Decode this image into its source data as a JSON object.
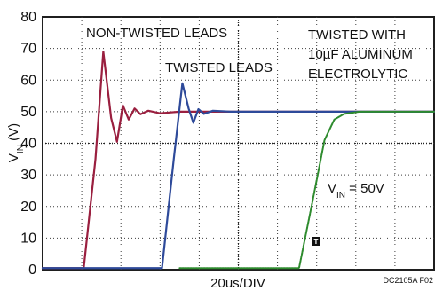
{
  "chart_data": {
    "type": "line",
    "title": "",
    "xlabel": "20us/DIV",
    "ylabel_main": "V",
    "ylabel_sub": "IN",
    "ylabel_unit": " (V)",
    "ylim": [
      0,
      80
    ],
    "xlim": [
      0,
      10
    ],
    "y_ticks": [
      "0",
      "10",
      "20",
      "30",
      "40",
      "50",
      "60",
      "70",
      "80"
    ],
    "grid": "dotted",
    "series": [
      {
        "name": "NON-TWISTED LEADS",
        "color": "#9a1f3f",
        "points": [
          [
            0,
            0.5
          ],
          [
            1.05,
            0.5
          ],
          [
            1.35,
            35
          ],
          [
            1.55,
            69
          ],
          [
            1.75,
            48
          ],
          [
            1.9,
            40.5
          ],
          [
            2.05,
            52
          ],
          [
            2.2,
            47.5
          ],
          [
            2.35,
            51
          ],
          [
            2.5,
            49.2
          ],
          [
            2.7,
            50.3
          ],
          [
            3.0,
            49.5
          ],
          [
            3.5,
            50
          ],
          [
            10,
            50
          ]
        ]
      },
      {
        "name": "TWISTED LEADS",
        "color": "#2e4a9a",
        "points": [
          [
            0,
            0.5
          ],
          [
            3.05,
            0.5
          ],
          [
            3.35,
            35
          ],
          [
            3.57,
            59
          ],
          [
            3.73,
            51
          ],
          [
            3.85,
            46.5
          ],
          [
            3.98,
            50.8
          ],
          [
            4.12,
            49.3
          ],
          [
            4.35,
            50.3
          ],
          [
            4.8,
            50
          ],
          [
            10,
            50
          ]
        ]
      },
      {
        "name": "TWISTED WITH 10µF ALUMINUM ELECTROLYTIC",
        "color": "#2e8b2e",
        "points": [
          [
            3.5,
            0.5
          ],
          [
            6.55,
            0.5
          ],
          [
            6.9,
            22
          ],
          [
            7.2,
            41
          ],
          [
            7.45,
            47.5
          ],
          [
            7.7,
            49.3
          ],
          [
            8.1,
            50
          ],
          [
            10,
            50
          ]
        ]
      }
    ],
    "annotations": {
      "non_twisted": "NON-TWISTED LEADS",
      "twisted": "TWISTED LEADS",
      "electrolytic_line1": "TWISTED WITH",
      "electrolytic_line2": "10µF ALUMINUM",
      "electrolytic_line3": "ELECTROLYTIC",
      "vin_setting": "V",
      "vin_setting_sub": "IN",
      "vin_setting_value": " = 50V",
      "trigger_marker": "T",
      "figure_code": "DC2105A F02"
    }
  }
}
